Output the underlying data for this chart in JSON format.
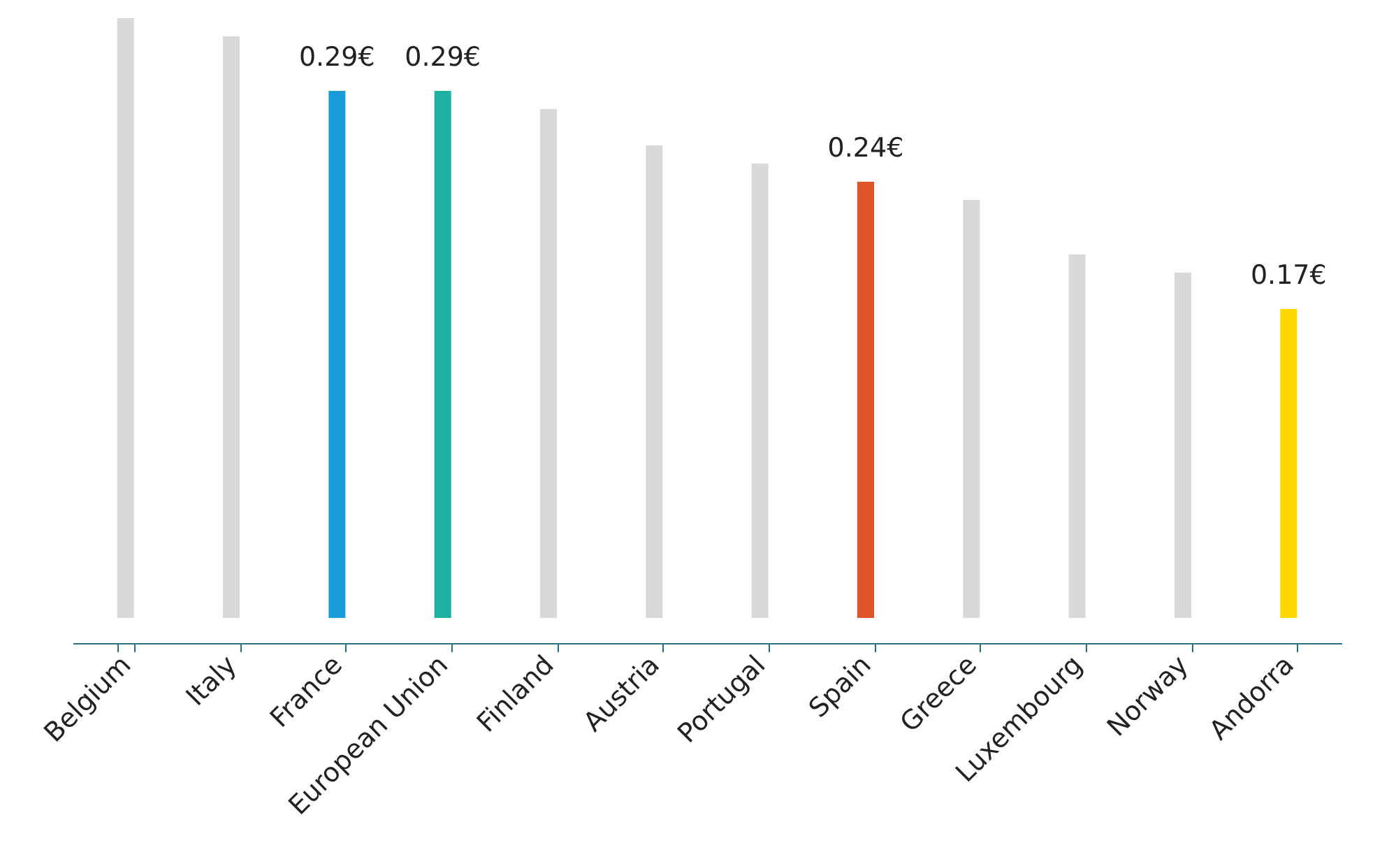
{
  "chart_data": {
    "type": "bar",
    "categories": [
      "Belgium",
      "Italy",
      "France",
      "European Union",
      "Finland",
      "Austria",
      "Portugal",
      "Spain",
      "Greece",
      "Luxembourg",
      "Norway",
      "Andorra"
    ],
    "values": [
      0.33,
      0.32,
      0.29,
      0.29,
      0.28,
      0.26,
      0.25,
      0.24,
      0.23,
      0.2,
      0.19,
      0.17
    ],
    "colors": [
      "#d9d9d9",
      "#d9d9d9",
      "#1a9cd8",
      "#1fb0a2",
      "#d9d9d9",
      "#d9d9d9",
      "#d9d9d9",
      "#e0542a",
      "#d9d9d9",
      "#d9d9d9",
      "#d9d9d9",
      "#ffd800"
    ],
    "value_labels": [
      null,
      null,
      "0.29€",
      "0.29€",
      null,
      null,
      null,
      "0.24€",
      null,
      null,
      null,
      "0.17€"
    ]
  }
}
